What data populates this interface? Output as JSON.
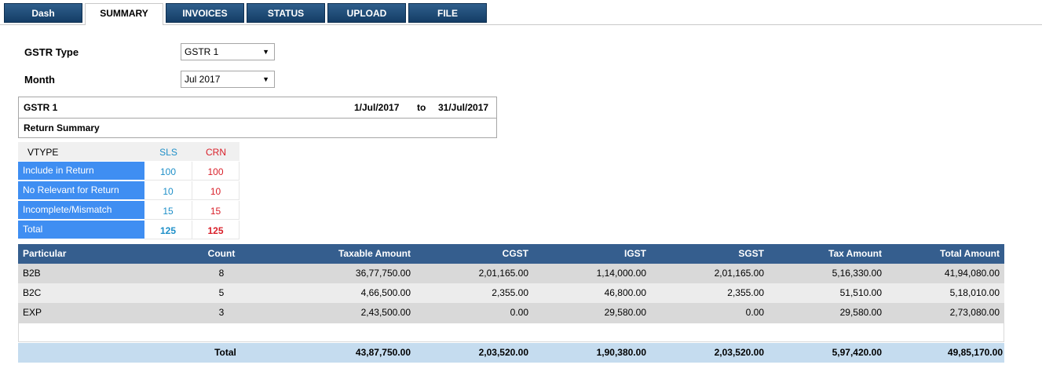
{
  "tabs": [
    {
      "label": "Dash",
      "active": false
    },
    {
      "label": "SUMMARY",
      "active": true
    },
    {
      "label": "INVOICES",
      "active": false
    },
    {
      "label": "STATUS",
      "active": false
    },
    {
      "label": "UPLOAD",
      "active": false
    },
    {
      "label": "FILE",
      "active": false
    }
  ],
  "form": {
    "gstr_type_label": "GSTR Type",
    "gstr_type_value": "GSTR 1",
    "month_label": "Month",
    "month_value": "Jul 2017"
  },
  "header": {
    "title": "GSTR 1",
    "from_date": "1/Jul/2017",
    "to_label": "to",
    "to_date": "31/Jul/2017",
    "subtitle": "Return Summary"
  },
  "vtype": {
    "columns": [
      "VTYPE",
      "SLS",
      "CRN"
    ],
    "rows": [
      {
        "label": "Include in Return",
        "sls": "100",
        "crn": "100"
      },
      {
        "label": "No Relevant for Return",
        "sls": "10",
        "crn": "10"
      },
      {
        "label": "Incomplete/Mismatch",
        "sls": "15",
        "crn": "15"
      },
      {
        "label": "Total",
        "sls": "125",
        "crn": "125"
      }
    ]
  },
  "summary": {
    "columns": [
      "Particular",
      "Count",
      "Taxable Amount",
      "CGST",
      "IGST",
      "SGST",
      "Tax Amount",
      "Total Amount"
    ],
    "rows": [
      [
        "B2B",
        "8",
        "36,77,750.00",
        "2,01,165.00",
        "1,14,000.00",
        "2,01,165.00",
        "5,16,330.00",
        "41,94,080.00"
      ],
      [
        "B2C",
        "5",
        "4,66,500.00",
        "2,355.00",
        "46,800.00",
        "2,355.00",
        "51,510.00",
        "5,18,010.00"
      ],
      [
        "EXP",
        "3",
        "2,43,500.00",
        "0.00",
        "29,580.00",
        "0.00",
        "29,580.00",
        "2,73,080.00"
      ]
    ],
    "total": [
      "Total",
      "43,87,750.00",
      "2,03,520.00",
      "1,90,380.00",
      "2,03,520.00",
      "5,97,420.00",
      "49,85,170.00"
    ]
  },
  "colors": {
    "tab_bg": "#1f4a75",
    "header_bg": "#355e8e",
    "vtype_label_bg": "#3f8ef2",
    "sls_color": "#1e8fc8",
    "crn_color": "#d9202a",
    "total_row_bg": "#c5dcef"
  }
}
